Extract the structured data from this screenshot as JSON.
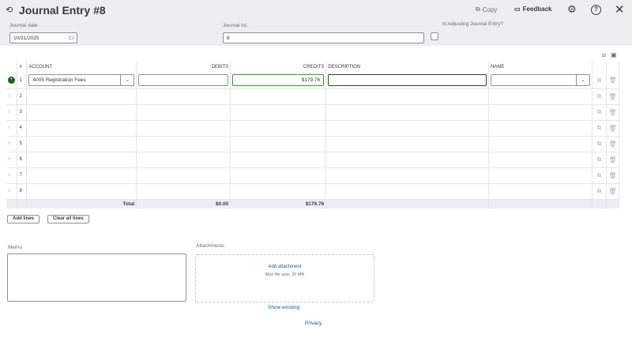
{
  "header": {
    "title": "Journal Entry #8",
    "copy": "Copy",
    "feedback": "Feedback"
  },
  "form": {
    "date_label": "Journal date",
    "date_value": "10/31/2025",
    "no_label": "Journal no.",
    "no_value": "8",
    "adjusting_label": "Is Adjusting Journal Entry?",
    "adjusting_checked": false
  },
  "table": {
    "columns": [
      "#",
      "ACCOUNT",
      "DEBITS",
      "CREDITS",
      "DESCRIPTION",
      "NAME"
    ],
    "rows": [
      {
        "n": "1",
        "account": "4005 Registration Fees",
        "debit": "",
        "credit": "$179.76",
        "description": "",
        "name": ""
      },
      {
        "n": "2"
      },
      {
        "n": "3"
      },
      {
        "n": "4"
      },
      {
        "n": "5"
      },
      {
        "n": "6"
      },
      {
        "n": "7"
      },
      {
        "n": "8"
      }
    ],
    "total_label": "Total",
    "total_debits": "$0.00",
    "total_credits": "$179.76"
  },
  "buttons": {
    "add_lines": "Add lines",
    "clear_lines": "Clear all lines"
  },
  "memo": {
    "label": "Memo",
    "value": ""
  },
  "attachments": {
    "label": "Attachments",
    "add": "Add attachment",
    "max": "Max file size: 20 MB",
    "show_existing": "Show existing"
  },
  "footer": {
    "privacy": "Privacy"
  },
  "colors": {
    "accent": "#2ca01c",
    "link": "#0b5f8f",
    "header_bg": "#eceef1"
  }
}
